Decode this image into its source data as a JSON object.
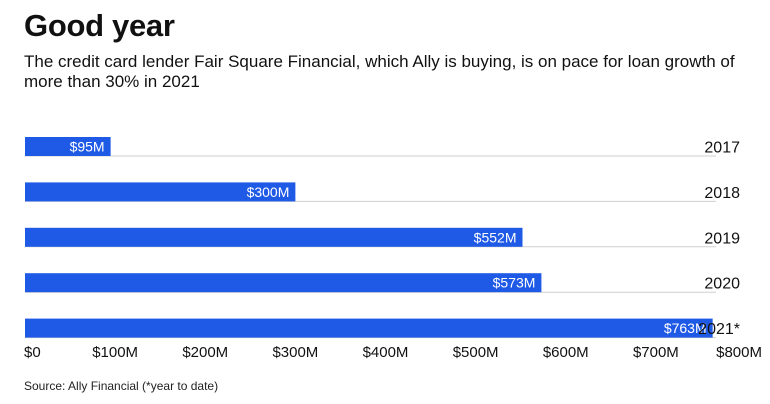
{
  "title": "Good year",
  "subtitle": "The credit card lender Fair Square Financial, which Ally is buying, is on pace for loan growth of more than 30% in 2021",
  "source": "Source: Ally Financial (*year to date)",
  "colors": {
    "bar": "#1f5ae6",
    "bar_text": "#ffffff",
    "rule": "#cfcfcf"
  },
  "chart_data": {
    "type": "bar",
    "orientation": "horizontal",
    "categories": [
      "2017",
      "2018",
      "2019",
      "2020",
      "2021*"
    ],
    "values": [
      95,
      300,
      552,
      573,
      763
    ],
    "value_labels": [
      "$95M",
      "$300M",
      "$552M",
      "$573M",
      "$763M"
    ],
    "xlim": [
      0,
      800
    ],
    "xticks": [
      0,
      100,
      200,
      300,
      400,
      500,
      600,
      700,
      800
    ],
    "xtick_labels": [
      "$0",
      "$100M",
      "$200M",
      "$300M",
      "$400M",
      "$500M",
      "$600M",
      "$700M",
      "$800M"
    ],
    "grid": false,
    "legend": "none"
  }
}
